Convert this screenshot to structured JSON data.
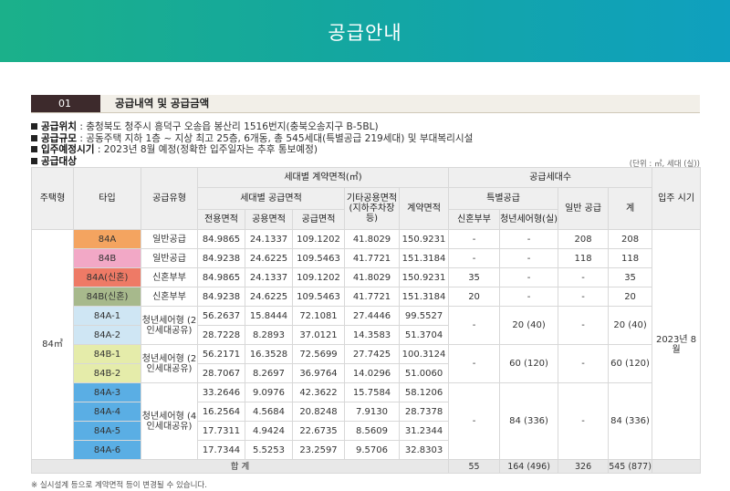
{
  "header": {
    "title": "공급안내"
  },
  "section": {
    "number": "01",
    "title": "공급내역 및 공급금액"
  },
  "info": [
    {
      "label": "공급위치",
      "text": " : 충청북도 청주시 흥덕구 오송읍 봉산리 1516번지(충북오송지구 B-5BL)"
    },
    {
      "label": "공급규모",
      "text": " : 공동주택 지하 1층 ~ 지상 최고 25층, 6개동, 총 545세대(특별공급 219세대) 및 부대복리시설"
    },
    {
      "label": "입주예정시기",
      "text": " : 2023년 8월 예정(정확한 입주일자는 추후 통보예정)"
    },
    {
      "label": "공급대상",
      "text": ""
    }
  ],
  "unit_note": "(단위 : ㎡, 세대 (실))",
  "headers": {
    "housing_type": "주택형",
    "type": "타입",
    "supply_type": "공급유형",
    "contract_area_group": "세대별 계약면적(㎡)",
    "supply_area_group": "세대별 공급면적",
    "private_area": "전용면적",
    "common_area": "공용면적",
    "supply_area": "공급면적",
    "other_common": "기타공용면적 (지하주차장 등)",
    "contract_area": "계약면적",
    "households_group": "공급세대수",
    "special_group": "특별공급",
    "newlywed": "신혼부부",
    "youth": "청년세어형(실)",
    "general": "일반 공급",
    "total": "계",
    "move_in": "입주 시기"
  },
  "size_label": "84㎡",
  "move_in_value": "2023년 8월",
  "rows": [
    {
      "type": "84A",
      "color": "#f4a460",
      "supply_type": "일반공급",
      "private": "84.9865",
      "common": "24.1337",
      "supply": "109.1202",
      "other": "41.8029",
      "contract": "150.9231",
      "newlywed": "-",
      "youth": "-",
      "general": "208",
      "total": "208"
    },
    {
      "type": "84B",
      "color": "#f2a8c6",
      "supply_type": "일반공급",
      "private": "84.9238",
      "common": "24.6225",
      "supply": "109.5463",
      "other": "41.7721",
      "contract": "151.3184",
      "newlywed": "-",
      "youth": "-",
      "general": "118",
      "total": "118"
    },
    {
      "type": "84A(신혼)",
      "color": "#ee7a66",
      "supply_type": "신혼부부",
      "private": "84.9865",
      "common": "24.1337",
      "supply": "109.1202",
      "other": "41.8029",
      "contract": "150.9231",
      "newlywed": "35",
      "youth": "-",
      "general": "-",
      "total": "35"
    },
    {
      "type": "84B(신혼)",
      "color": "#a7b98c",
      "supply_type": "신혼부부",
      "private": "84.9238",
      "common": "24.6225",
      "supply": "109.5463",
      "other": "41.7721",
      "contract": "151.3184",
      "newlywed": "20",
      "youth": "-",
      "general": "-",
      "total": "20"
    }
  ],
  "groups": [
    {
      "supply_type": "청년세어형 (2인세대공유)",
      "newlywed": "-",
      "youth": "20 (40)",
      "general": "-",
      "total": "20 (40)",
      "rows": [
        {
          "type": "84A-1",
          "color": "#cfe6f4",
          "private": "56.2637",
          "common": "15.8444",
          "supply": "72.1081",
          "other": "27.4446",
          "contract": "99.5527"
        },
        {
          "type": "84A-2",
          "color": "#cfe6f4",
          "private": "28.7228",
          "common": "8.2893",
          "supply": "37.0121",
          "other": "14.3583",
          "contract": "51.3704"
        }
      ]
    },
    {
      "supply_type": "청년세어형 (2인세대공유)",
      "newlywed": "-",
      "youth": "60 (120)",
      "general": "-",
      "total": "60 (120)",
      "rows": [
        {
          "type": "84B-1",
          "color": "#e5ecaa",
          "private": "56.2171",
          "common": "16.3528",
          "supply": "72.5699",
          "other": "27.7425",
          "contract": "100.3124"
        },
        {
          "type": "84B-2",
          "color": "#e5ecaa",
          "private": "28.7067",
          "common": "8.2697",
          "supply": "36.9764",
          "other": "14.0296",
          "contract": "51.0060"
        }
      ]
    },
    {
      "supply_type": "청년세어형 (4인세대공유)",
      "newlywed": "-",
      "youth": "84 (336)",
      "general": "-",
      "total": "84 (336)",
      "rows": [
        {
          "type": "84A-3",
          "color": "#5aaee4",
          "private": "33.2646",
          "common": "9.0976",
          "supply": "42.3622",
          "other": "15.7584",
          "contract": "58.1206"
        },
        {
          "type": "84A-4",
          "color": "#5aaee4",
          "private": "16.2564",
          "common": "4.5684",
          "supply": "20.8248",
          "other": "7.9130",
          "contract": "28.7378"
        },
        {
          "type": "84A-5",
          "color": "#5aaee4",
          "private": "17.7311",
          "common": "4.9424",
          "supply": "22.6735",
          "other": "8.5609",
          "contract": "31.2344"
        },
        {
          "type": "84A-6",
          "color": "#5aaee4",
          "private": "17.7344",
          "common": "5.5253",
          "supply": "23.2597",
          "other": "9.5706",
          "contract": "32.8303"
        }
      ]
    }
  ],
  "totals": {
    "label": "합 계",
    "newlywed": "55",
    "youth": "164 (496)",
    "general": "326",
    "total": "545 (877)"
  },
  "footnote": "※ 실시설계 등으로 계약면적 등이 변경될 수 있습니다."
}
